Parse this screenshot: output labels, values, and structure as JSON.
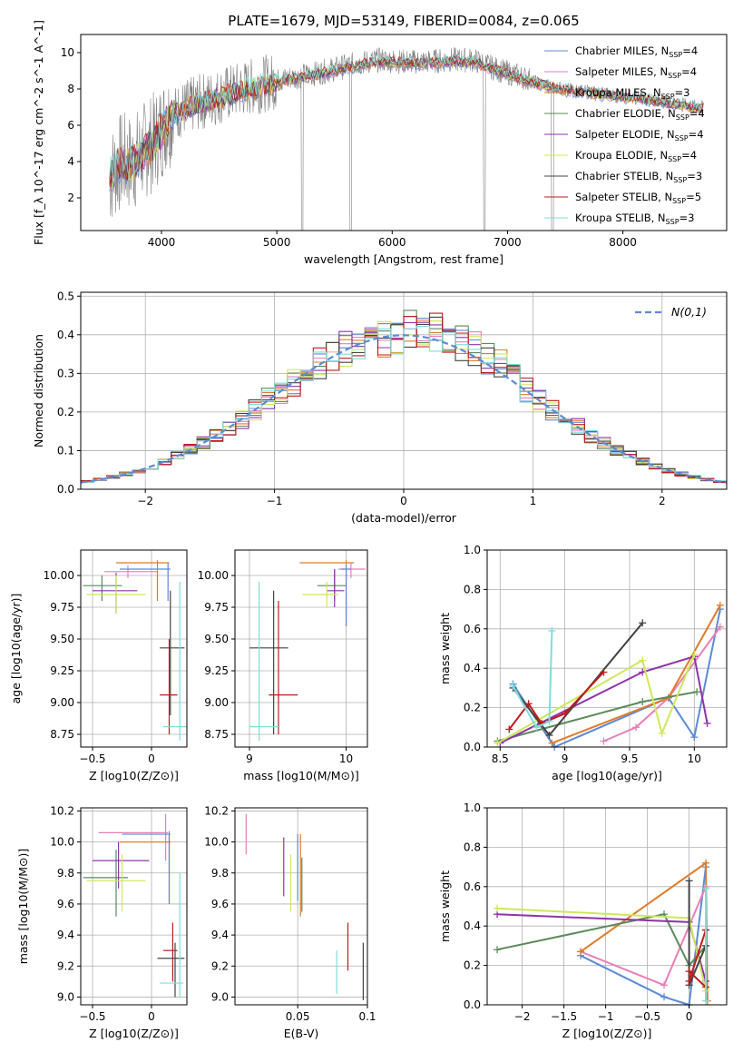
{
  "title": "PLATE=1679, MJD=53149, FIBERID=0084, z=0.065",
  "series_styles": [
    {
      "name": "Chabrier MILES",
      "n": 4,
      "color": "#5b8bd6"
    },
    {
      "name": "Salpeter MILES",
      "n": 4,
      "color": "#e87fb8"
    },
    {
      "name": "Kroupa MILES",
      "n": 3,
      "color": "#e07b28"
    },
    {
      "name": "Chabrier ELODIE",
      "n": 4,
      "color": "#5b8a5b"
    },
    {
      "name": "Salpeter ELODIE",
      "n": 4,
      "color": "#8e34a8"
    },
    {
      "name": "Kroupa ELODIE",
      "n": 4,
      "color": "#cde85a"
    },
    {
      "name": "Chabrier STELIB",
      "n": 3,
      "color": "#444444"
    },
    {
      "name": "Salpeter STELIB",
      "n": 5,
      "color": "#c21a1a"
    },
    {
      "name": "Kroupa STELIB",
      "n": 3,
      "color": "#7fdcdc"
    }
  ],
  "chart_data": [
    {
      "id": "spectrum",
      "type": "line",
      "xlabel": "wavelength [Angstrom, rest frame]",
      "ylabel": "Flux [f_λ 10^-17 erg cm^-2 s^-1 A^-1]",
      "xlim": [
        3300,
        8900
      ],
      "ylim": [
        0.2,
        11
      ],
      "xticks": [
        4000,
        5000,
        6000,
        7000,
        8000
      ],
      "yticks": [
        2,
        4,
        6,
        8,
        10
      ],
      "observed": {
        "color": "#808080",
        "x": [
          3550,
          3650,
          3750,
          3850,
          3950,
          4050,
          4150,
          4300,
          4500,
          4700,
          4900,
          5100,
          5300,
          5500,
          5700,
          5900,
          6100,
          6300,
          6500,
          6700,
          6900,
          7100,
          7300,
          7500,
          7700,
          7900,
          8100,
          8300,
          8500,
          8700
        ],
        "y": [
          3.1,
          4.0,
          3.9,
          4.6,
          5.2,
          6.3,
          6.8,
          7.2,
          7.6,
          8.0,
          8.3,
          8.6,
          8.8,
          9.1,
          9.4,
          9.6,
          9.5,
          9.5,
          9.6,
          9.6,
          9.1,
          8.7,
          8.3,
          8.0,
          7.9,
          7.7,
          7.6,
          7.4,
          7.2,
          7.0
        ]
      },
      "model_y": [
        3.1,
        3.9,
        3.8,
        4.5,
        5.1,
        6.2,
        6.7,
        7.1,
        7.5,
        7.9,
        8.2,
        8.5,
        8.7,
        9.0,
        9.3,
        9.5,
        9.4,
        9.4,
        9.5,
        9.5,
        9.0,
        8.6,
        8.2,
        7.9,
        7.8,
        7.6,
        7.5,
        7.3,
        7.1,
        6.9
      ]
    },
    {
      "id": "residuals",
      "type": "histogram",
      "xlabel": "(data-model)/error",
      "ylabel": "Normed distribution",
      "xlim": [
        -2.5,
        2.5
      ],
      "ylim": [
        0,
        0.51
      ],
      "xticks": [
        -2,
        -1,
        0,
        1,
        2
      ],
      "yticks": [
        0.0,
        0.1,
        0.2,
        0.3,
        0.4,
        0.5
      ],
      "legend": "N(0,1)"
    },
    {
      "id": "age-vs-Z",
      "type": "errorbar",
      "xlabel": "Z [log10(Z/Z⊙)]",
      "ylabel": "age  [log10(age/yr)]",
      "xlim": [
        -0.6,
        0.3
      ],
      "ylim": [
        8.65,
        10.2
      ],
      "xticks": [
        -0.5,
        0.0
      ],
      "yticks": [
        8.75,
        9.0,
        9.25,
        9.5,
        9.75,
        10.0
      ],
      "points": [
        {
          "x": -0.42,
          "xlo": -0.58,
          "xhi": -0.25,
          "y": 9.92,
          "ylo": 9.8,
          "yhi": 10.0,
          "s": 3
        },
        {
          "x": -0.3,
          "xlo": -0.5,
          "xhi": -0.12,
          "y": 9.88,
          "ylo": 9.7,
          "yhi": 10.02,
          "s": 4
        },
        {
          "x": -0.3,
          "xlo": -0.55,
          "xhi": -0.05,
          "y": 9.85,
          "ylo": 9.7,
          "yhi": 10.0,
          "s": 5
        },
        {
          "x": -0.2,
          "xlo": -0.4,
          "xhi": 0.05,
          "y": 10.03,
          "ylo": 9.98,
          "yhi": 10.08,
          "s": 1
        },
        {
          "x": 0.05,
          "xlo": -0.3,
          "xhi": 0.15,
          "y": 10.1,
          "ylo": 9.8,
          "yhi": 10.12,
          "s": 2
        },
        {
          "x": 0.14,
          "xlo": -0.27,
          "xhi": 0.16,
          "y": 10.05,
          "ylo": 9.8,
          "yhi": 10.1,
          "s": 0
        },
        {
          "x": 0.16,
          "xlo": 0.07,
          "xhi": 0.28,
          "y": 9.43,
          "ylo": 8.9,
          "yhi": 9.88,
          "s": 6
        },
        {
          "x": 0.15,
          "xlo": 0.07,
          "xhi": 0.22,
          "y": 9.06,
          "ylo": 8.75,
          "yhi": 9.5,
          "s": 7
        },
        {
          "x": 0.24,
          "xlo": 0.1,
          "xhi": 0.3,
          "y": 8.81,
          "ylo": 8.7,
          "yhi": 9.95,
          "s": 8
        }
      ]
    },
    {
      "id": "age-vs-mass",
      "type": "errorbar",
      "xlabel": "mass [log10(M/M⊙)]",
      "ylabel": "",
      "xlim": [
        8.85,
        10.22
      ],
      "ylim": [
        8.65,
        10.2
      ],
      "xticks": [
        9,
        10
      ],
      "yticks": [
        8.75,
        9.0,
        9.25,
        9.5,
        9.75,
        10.0
      ],
      "points": [
        {
          "x": 9.88,
          "xlo": 9.7,
          "xhi": 10.0,
          "y": 9.92,
          "ylo": 9.8,
          "yhi": 10.05,
          "s": 3
        },
        {
          "x": 9.88,
          "xlo": 9.8,
          "xhi": 9.98,
          "y": 9.88,
          "ylo": 9.75,
          "yhi": 10.05,
          "s": 4
        },
        {
          "x": 9.8,
          "xlo": 9.55,
          "xhi": 9.92,
          "y": 9.85,
          "ylo": 9.75,
          "yhi": 9.95,
          "s": 5
        },
        {
          "x": 10.05,
          "xlo": 9.92,
          "xhi": 10.2,
          "y": 10.05,
          "ylo": 9.98,
          "yhi": 10.1,
          "s": 1
        },
        {
          "x": 10.0,
          "xlo": 9.52,
          "xhi": 10.08,
          "y": 10.1,
          "ylo": 9.6,
          "yhi": 10.12,
          "s": 2
        },
        {
          "x": 10.0,
          "xlo": 9.95,
          "xhi": 10.05,
          "y": 10.05,
          "ylo": 9.6,
          "yhi": 10.08,
          "s": 0
        },
        {
          "x": 9.25,
          "xlo": 9.0,
          "xhi": 9.4,
          "y": 9.43,
          "ylo": 8.75,
          "yhi": 9.88,
          "s": 6
        },
        {
          "x": 9.3,
          "xlo": 9.2,
          "xhi": 9.5,
          "y": 9.06,
          "ylo": 8.75,
          "yhi": 9.8,
          "s": 7
        },
        {
          "x": 9.1,
          "xlo": 9.0,
          "xhi": 9.3,
          "y": 8.81,
          "ylo": 8.7,
          "yhi": 9.95,
          "s": 8
        }
      ]
    },
    {
      "id": "weight-vs-age",
      "type": "line",
      "xlabel": "age  [log10(age/yr)]",
      "ylabel": "mass weight",
      "xlim": [
        8.4,
        10.25
      ],
      "ylim": [
        0,
        1.0
      ],
      "xticks": [
        8.5,
        9.0,
        9.5,
        10.0
      ],
      "yticks": [
        0.0,
        0.2,
        0.4,
        0.6,
        0.8,
        1.0
      ],
      "series": [
        {
          "s": 0,
          "x": [
            8.6,
            8.92,
            9.8,
            10.0,
            10.2
          ],
          "y": [
            0.32,
            0.0,
            0.25,
            0.05,
            0.7
          ]
        },
        {
          "s": 1,
          "x": [
            9.3,
            9.55,
            9.8,
            10.2
          ],
          "y": [
            0.03,
            0.1,
            0.25,
            0.61
          ]
        },
        {
          "s": 2,
          "x": [
            8.9,
            9.8,
            10.2
          ],
          "y": [
            0.02,
            0.25,
            0.72
          ]
        },
        {
          "s": 3,
          "x": [
            8.48,
            9.6,
            10.02
          ],
          "y": [
            0.03,
            0.23,
            0.28
          ]
        },
        {
          "s": 4,
          "x": [
            8.5,
            9.6,
            10.0,
            10.1
          ],
          "y": [
            0.02,
            0.38,
            0.46,
            0.12
          ]
        },
        {
          "s": 5,
          "x": [
            8.48,
            9.6,
            9.75,
            10.0
          ],
          "y": [
            0.02,
            0.44,
            0.07,
            0.47
          ]
        },
        {
          "s": 6,
          "x": [
            8.6,
            8.88,
            9.6
          ],
          "y": [
            0.3,
            0.06,
            0.63
          ]
        },
        {
          "s": 7,
          "x": [
            8.57,
            8.72,
            8.82,
            9.0,
            9.3
          ],
          "y": [
            0.09,
            0.22,
            0.12,
            0.17,
            0.38
          ]
        },
        {
          "s": 8,
          "x": [
            8.6,
            8.78,
            8.88,
            8.9
          ],
          "y": [
            0.31,
            0.1,
            0.13,
            0.59
          ]
        }
      ]
    },
    {
      "id": "mass-vs-Z",
      "type": "errorbar",
      "xlabel": "Z [log10(Z/Z⊙)]",
      "ylabel": "mass [log10(M/M⊙)]",
      "xlim": [
        -0.6,
        0.3
      ],
      "ylim": [
        8.95,
        10.22
      ],
      "xticks": [
        -0.5,
        0.0
      ],
      "yticks": [
        9.0,
        9.2,
        9.4,
        9.6,
        9.8,
        10.0,
        10.2
      ],
      "points": [
        {
          "x": -0.3,
          "xlo": -0.58,
          "xhi": -0.2,
          "y": 9.77,
          "ylo": 9.52,
          "yhi": 9.95,
          "s": 3
        },
        {
          "x": -0.28,
          "xlo": -0.5,
          "xhi": -0.02,
          "y": 9.88,
          "ylo": 9.7,
          "yhi": 10.0,
          "s": 4
        },
        {
          "x": -0.25,
          "xlo": -0.55,
          "xhi": -0.05,
          "y": 9.75,
          "ylo": 9.55,
          "yhi": 9.92,
          "s": 5
        },
        {
          "x": 0.12,
          "xlo": -0.45,
          "xhi": 0.14,
          "y": 10.06,
          "ylo": 9.88,
          "yhi": 10.18,
          "s": 1
        },
        {
          "x": 0.15,
          "xlo": -0.27,
          "xhi": 0.16,
          "y": 10.0,
          "ylo": 9.6,
          "yhi": 10.05,
          "s": 2
        },
        {
          "x": 0.15,
          "xlo": -0.25,
          "xhi": 0.16,
          "y": 10.05,
          "ylo": 9.6,
          "yhi": 10.07,
          "s": 0
        },
        {
          "x": 0.2,
          "xlo": 0.05,
          "xhi": 0.28,
          "y": 9.25,
          "ylo": 9.0,
          "yhi": 9.35,
          "s": 6
        },
        {
          "x": 0.18,
          "xlo": 0.1,
          "xhi": 0.22,
          "y": 9.3,
          "ylo": 9.1,
          "yhi": 9.48,
          "s": 7
        },
        {
          "x": 0.24,
          "xlo": 0.07,
          "xhi": 0.27,
          "y": 9.09,
          "ylo": 9.0,
          "yhi": 9.8,
          "s": 8
        }
      ]
    },
    {
      "id": "mass-vs-EBV",
      "type": "errorbar",
      "xlabel": "E(B-V)",
      "ylabel": "",
      "xlim": [
        0.005,
        0.1
      ],
      "ylim": [
        8.95,
        10.22
      ],
      "xticks": [
        0.05,
        0.1
      ],
      "yticks": [
        9.0,
        9.2,
        9.4,
        9.6,
        9.8,
        10.0,
        10.2
      ],
      "points": [
        {
          "x": 0.013,
          "ylo": 9.92,
          "yhi": 10.18,
          "s": 1
        },
        {
          "x": 0.04,
          "ylo": 9.65,
          "yhi": 10.03,
          "s": 4
        },
        {
          "x": 0.045,
          "ylo": 9.55,
          "yhi": 9.92,
          "s": 5
        },
        {
          "x": 0.05,
          "ylo": 9.62,
          "yhi": 10.05,
          "s": 0
        },
        {
          "x": 0.052,
          "ylo": 9.52,
          "yhi": 10.05,
          "s": 2
        },
        {
          "x": 0.053,
          "ylo": 9.55,
          "yhi": 9.9,
          "s": 3
        },
        {
          "x": 0.078,
          "ylo": 9.02,
          "yhi": 9.3,
          "s": 8
        },
        {
          "x": 0.086,
          "ylo": 9.17,
          "yhi": 9.48,
          "s": 7
        },
        {
          "x": 0.097,
          "ylo": 8.98,
          "yhi": 9.35,
          "s": 6
        }
      ]
    },
    {
      "id": "weight-vs-Z",
      "type": "line",
      "xlabel": "Z [log10(Z/Z⊙)]",
      "ylabel": "mass weight",
      "xlim": [
        -2.42,
        0.45
      ],
      "ylim": [
        0,
        1.0
      ],
      "xticks": [
        -2.0,
        -1.5,
        -1.0,
        -0.5,
        0.0
      ],
      "yticks": [
        0.0,
        0.2,
        0.4,
        0.6,
        0.8,
        1.0
      ],
      "series": [
        {
          "s": 0,
          "x": [
            -1.3,
            -0.3,
            0.0,
            0.2
          ],
          "y": [
            0.25,
            0.04,
            0.0,
            0.7
          ]
        },
        {
          "s": 1,
          "x": [
            -1.3,
            -0.3,
            0.2
          ],
          "y": [
            0.27,
            0.1,
            0.6
          ]
        },
        {
          "s": 2,
          "x": [
            -1.3,
            0.2,
            0.22
          ],
          "y": [
            0.27,
            0.72,
            0.02
          ]
        },
        {
          "s": 3,
          "x": [
            -2.3,
            -0.3,
            0.0,
            0.2
          ],
          "y": [
            0.28,
            0.46,
            0.2,
            0.3
          ]
        },
        {
          "s": 4,
          "x": [
            -2.3,
            0.0,
            0.2
          ],
          "y": [
            0.46,
            0.42,
            0.12
          ]
        },
        {
          "s": 5,
          "x": [
            -2.3,
            0.0,
            0.2
          ],
          "y": [
            0.49,
            0.44,
            0.07
          ]
        },
        {
          "s": 6,
          "x": [
            0.0,
            0.0,
            0.2,
            0.2
          ],
          "y": [
            0.63,
            0.1,
            0.3,
            0.38
          ]
        },
        {
          "s": 7,
          "x": [
            0.0,
            0.2,
            0.2,
            0.0
          ],
          "y": [
            0.17,
            0.09,
            0.38,
            0.12
          ]
        },
        {
          "s": 8,
          "x": [
            0.2,
            0.2
          ],
          "y": [
            0.59,
            0.02
          ]
        }
      ]
    }
  ]
}
